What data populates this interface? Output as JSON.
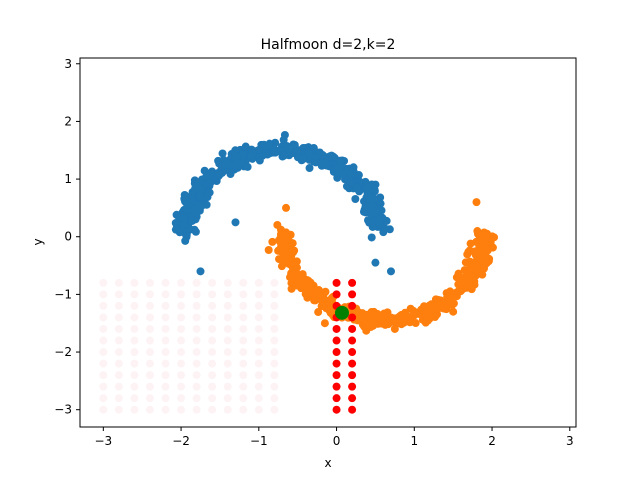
{
  "chart_data": {
    "type": "scatter",
    "title": "Halfmoon d=2,k=2",
    "xlabel": "x",
    "ylabel": "y",
    "xlim": [
      -3.3,
      3.08
    ],
    "ylim": [
      -3.3,
      3.1
    ],
    "xticks": [
      -3,
      -2,
      -1,
      0,
      1,
      2,
      3
    ],
    "yticks": [
      -3,
      -2,
      -1,
      0,
      1,
      2,
      3
    ],
    "grid": false,
    "series": [
      {
        "color": "#1f77b4",
        "moon": "upper",
        "count": 450,
        "center": [
          -0.7,
          0.02
        ],
        "radius": 1.48,
        "x_scale": 0.84,
        "angle_range_deg": [
          5,
          180
        ],
        "noise": 0.07,
        "extra_points": [
          [
            -1.75,
            -0.6
          ],
          [
            -1.3,
            0.25
          ],
          [
            0.5,
            -0.45
          ],
          [
            0.7,
            -0.6
          ],
          [
            -0.68,
            1.68
          ]
        ]
      },
      {
        "color": "#ff7f0e",
        "moon": "lower",
        "count": 450,
        "center": [
          0.6,
          0.1
        ],
        "radius": 1.55,
        "x_scale": 0.83,
        "angle_range_deg": [
          180,
          360
        ],
        "noise": 0.07,
        "extra_points": [
          [
            -0.65,
            0.5
          ],
          [
            1.8,
            0.6
          ],
          [
            -0.15,
            -1.5
          ],
          [
            1.5,
            -1.3
          ],
          [
            0.75,
            -1.6
          ]
        ]
      },
      {
        "color": "#ff0000",
        "points": [
          [
            0,
            -0.8
          ],
          [
            0,
            -1.0
          ],
          [
            0,
            -1.2
          ],
          [
            0,
            -1.4
          ],
          [
            0,
            -1.6
          ],
          [
            0,
            -1.8
          ],
          [
            0,
            -2.0
          ],
          [
            0,
            -2.2
          ],
          [
            0,
            -2.4
          ],
          [
            0,
            -2.6
          ],
          [
            0,
            -2.8
          ],
          [
            0,
            -3.0
          ],
          [
            0.2,
            -0.8
          ],
          [
            0.2,
            -1.0
          ],
          [
            0.2,
            -1.2
          ],
          [
            0.2,
            -1.4
          ],
          [
            0.2,
            -1.6
          ],
          [
            0.2,
            -1.8
          ],
          [
            0.2,
            -2.0
          ],
          [
            0.2,
            -2.2
          ],
          [
            0.2,
            -2.4
          ],
          [
            0.2,
            -2.6
          ],
          [
            0.2,
            -2.8
          ],
          [
            0.2,
            -3.0
          ]
        ]
      },
      {
        "color": "#fdf3f5",
        "grid_points": {
          "x_from": -3.0,
          "x_to": -0.8,
          "x_step": 0.2,
          "y_from": -0.8,
          "y_to": -3.0,
          "y_step": -0.2
        }
      },
      {
        "color": "#008000",
        "points": [
          [
            0.07,
            -1.32
          ]
        ],
        "size": "large"
      }
    ]
  }
}
